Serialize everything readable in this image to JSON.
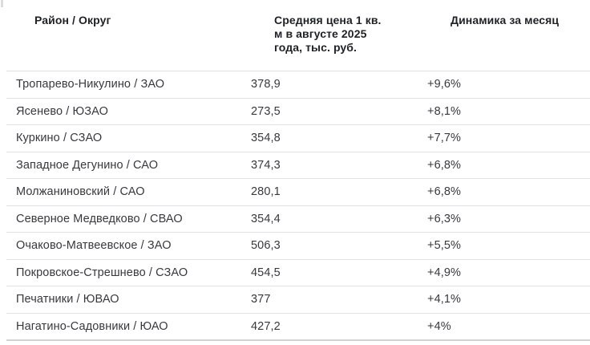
{
  "chart_data": {
    "type": "table",
    "columns": [
      "Район / Округ",
      "Средняя цена 1 кв. м в августе 2025 года, тыс. руб.",
      "Динамика за месяц"
    ],
    "rows": [
      [
        "Тропарево-Никулино / ЗАО",
        "378,9",
        "+9,6%"
      ],
      [
        "Ясенево / ЮЗАО",
        "273,5",
        "+8,1%"
      ],
      [
        "Куркино / СЗАО",
        "354,8",
        "+7,7%"
      ],
      [
        "Западное Дегунино / САО",
        "374,3",
        "+6,8%"
      ],
      [
        "Молжаниновский / САО",
        "280,1",
        "+6,8%"
      ],
      [
        "Северное Медведково / СВАО",
        "354,4",
        "+6,3%"
      ],
      [
        "Очаково-Матвеевское / ЗАО",
        "506,3",
        "+5,5%"
      ],
      [
        "Покровское-Стрешнево / СЗАО",
        "454,5",
        "+4,9%"
      ],
      [
        "Печатники / ЮВАО",
        "377",
        "+4,1%"
      ],
      [
        "Нагатино-Садовники / ЮАО",
        "427,2",
        "+4%"
      ]
    ],
    "prices_numeric": [
      378.9,
      273.5,
      354.8,
      374.3,
      280.1,
      354.4,
      506.3,
      454.5,
      377,
      427.2
    ],
    "change_pct_numeric": [
      9.6,
      8.1,
      7.7,
      6.8,
      6.8,
      6.3,
      5.5,
      4.9,
      4.1,
      4.0
    ]
  },
  "table": {
    "price_header_lines": [
      "Средняя цена 1 кв.",
      "м в августе 2025",
      "года, тыс. руб."
    ]
  },
  "colors": {
    "background": "#ffffff",
    "header_text": "#1e2125",
    "body_text": "#37393c",
    "row_divider": "#e1e1e1",
    "bottom_border": "#d2d2d2"
  }
}
